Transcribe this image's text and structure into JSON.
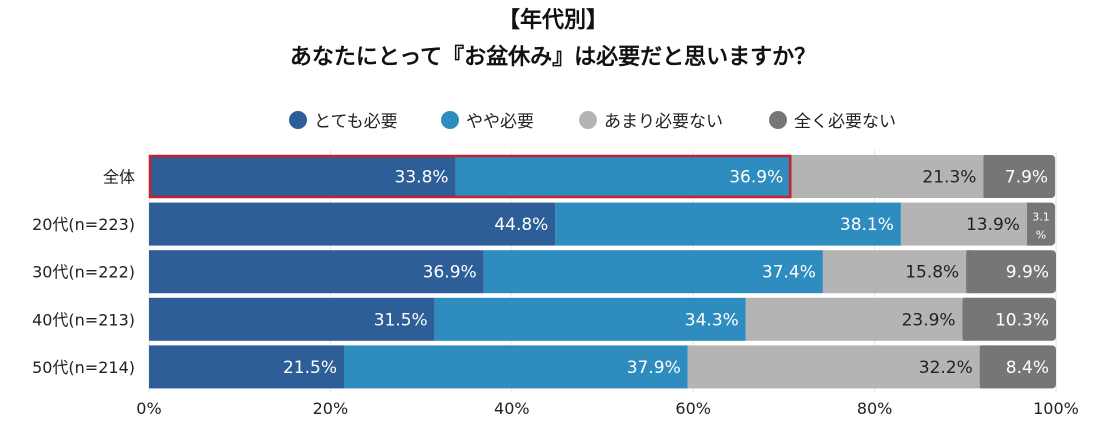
{
  "chart_data": {
    "type": "bar",
    "orientation": "horizontal",
    "stacked": true,
    "title": "【年代別】",
    "subtitle": "あなたにとって『お盆休み』は必要だと思いますか？",
    "categories": [
      "全体",
      "20代(n=223)",
      "30代(n=222)",
      "40代(n=213)",
      "50代(n=214)"
    ],
    "series": [
      {
        "name": "とても必要",
        "color": "#2e5e97",
        "values": [
          33.8,
          44.8,
          36.9,
          31.5,
          21.5
        ]
      },
      {
        "name": "やや必要",
        "color": "#2e8cbe",
        "values": [
          36.9,
          38.1,
          37.4,
          34.3,
          37.9
        ]
      },
      {
        "name": "あまり必要ない",
        "color": "#b4b4b4",
        "values": [
          21.3,
          13.9,
          15.8,
          23.9,
          32.2
        ]
      },
      {
        "name": "全く必要ない",
        "color": "#767676",
        "values": [
          7.9,
          3.1,
          9.9,
          10.3,
          8.4
        ]
      }
    ],
    "xticks": [
      "0%",
      "20%",
      "40%",
      "60%",
      "80%",
      "100%"
    ],
    "xlim": [
      0,
      100
    ],
    "legend": "top",
    "grid": true,
    "highlight": {
      "category": "全体",
      "series": [
        "とても必要",
        "やや必要"
      ],
      "color": "#c8202c"
    }
  }
}
